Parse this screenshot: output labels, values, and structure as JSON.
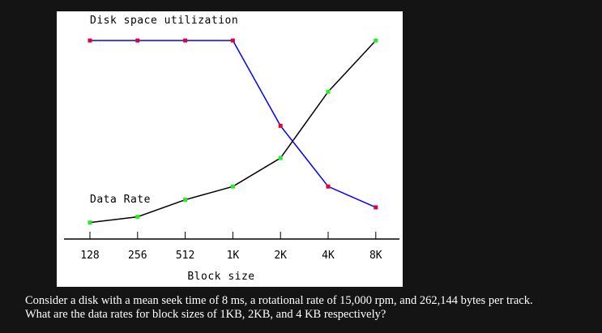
{
  "chart_data": {
    "type": "line",
    "categories": [
      "128",
      "256",
      "512",
      "1K",
      "2K",
      "4K",
      "8K"
    ],
    "xlabel": "Block size",
    "series": [
      {
        "name": "Disk space utilization",
        "values": [
          100,
          100,
          100,
          100,
          55,
          23,
          12
        ],
        "line_color": "#0000ff",
        "marker_color": "#e0003c"
      },
      {
        "name": "Data Rate",
        "values": [
          4,
          7,
          16,
          23,
          38,
          73,
          100
        ],
        "line_color": "#000000",
        "marker_color": "#22ee22"
      }
    ],
    "ylim": [
      0,
      105
    ],
    "y_axis_visible": false,
    "grid": false,
    "legend": "labels placed beside each curve"
  },
  "question": {
    "line1": "Consider a disk with a mean seek time of 8 ms, a rotational rate of 15,000 rpm, and 262,144 bytes per track.",
    "line2": "What are the data rates for block sizes of 1KB, 2KB, and 4 KB respectively?"
  }
}
